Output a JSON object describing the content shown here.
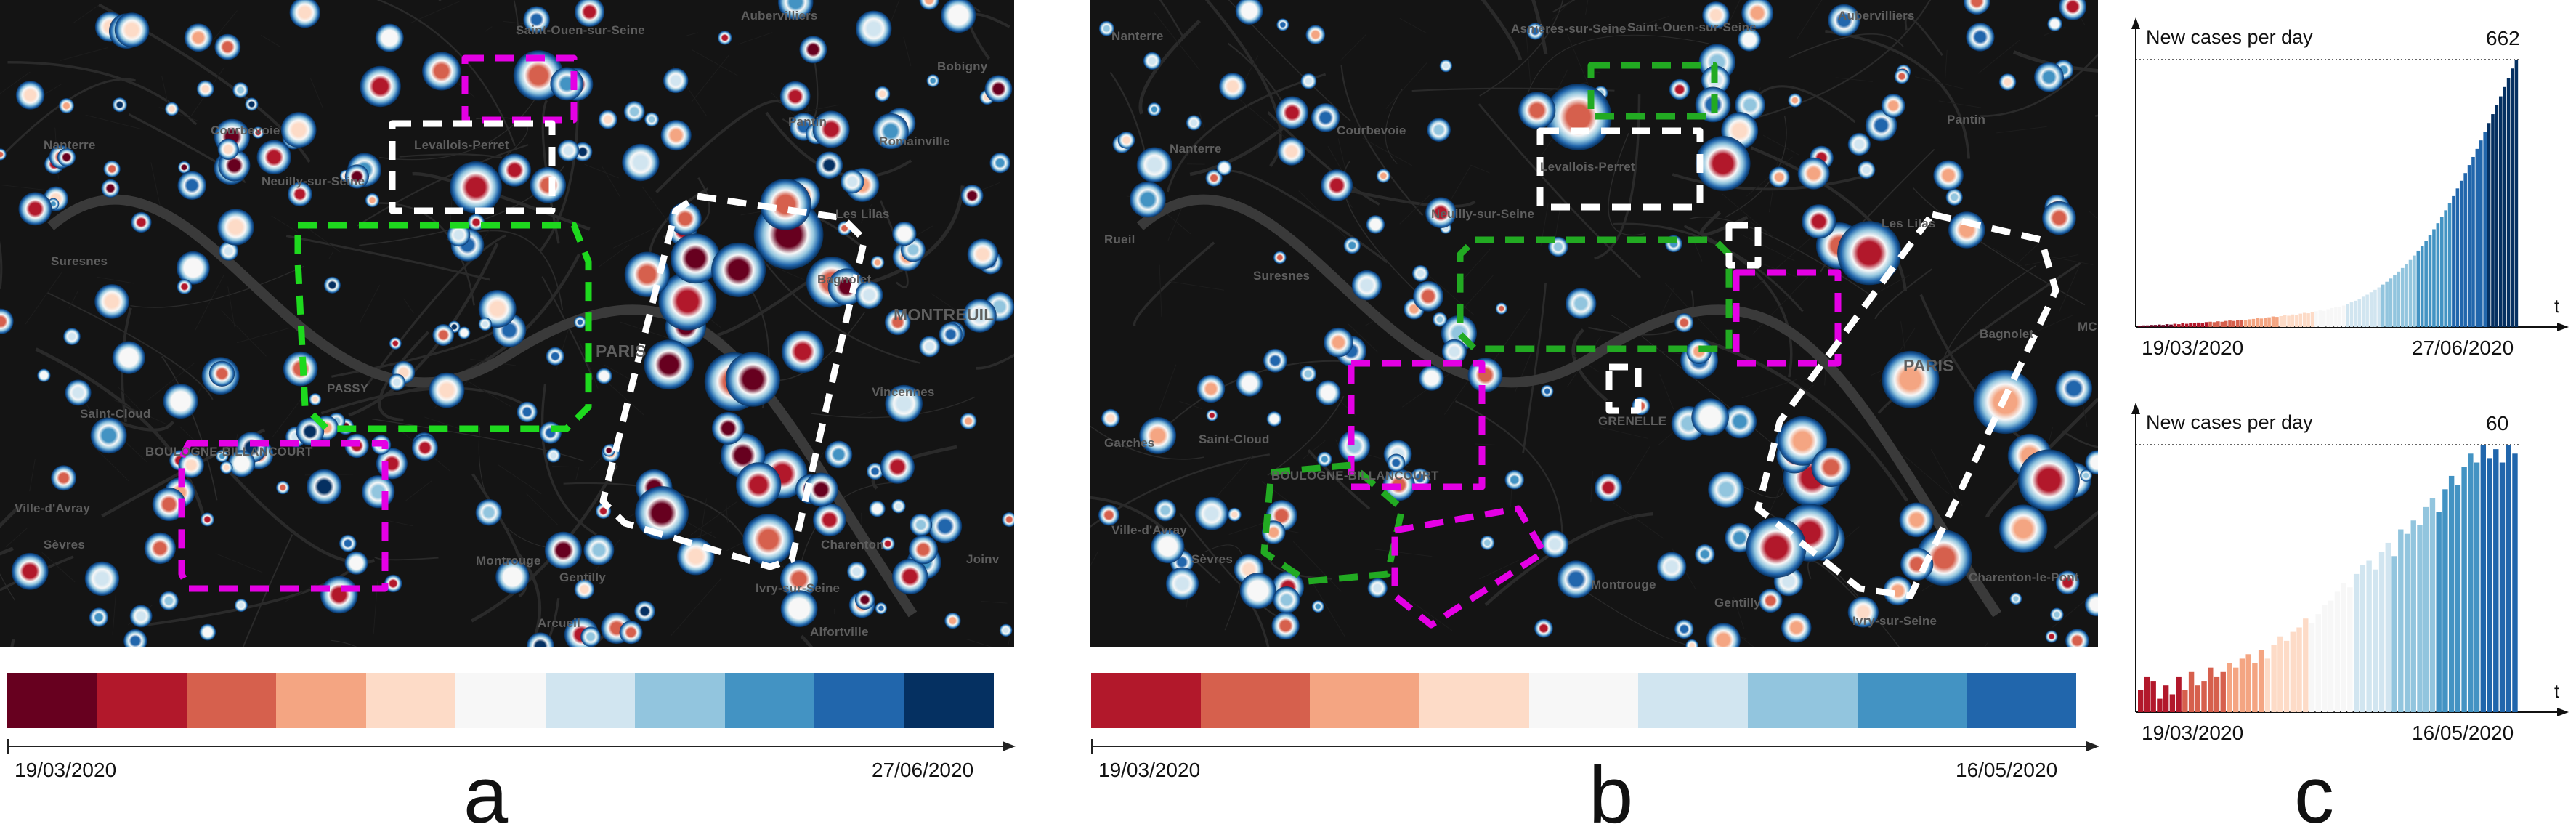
{
  "panels": {
    "a": "a",
    "b": "b",
    "c": "c"
  },
  "map_a": {
    "labels": [
      "Saint-Ouen-sur-Seine",
      "Aubervilliers",
      "Bobigny",
      "Pantin",
      "Nanterre",
      "Courbevoie",
      "Levallois-Perret",
      "Neuilly-sur-Seine",
      "Romainville",
      "Les Lilas",
      "Suresnes",
      "Bagnolet",
      "MONTREUIL",
      "PASSY",
      "PARIS",
      "Vincennes",
      "Saint-Cloud",
      "BOULOGNE-BILLANCOURT",
      "Ville-d'Avray",
      "Sèvres",
      "Montrouge",
      "Gentilly",
      "Charenton",
      "Joinv",
      "Ivry-sur-Seine",
      "Arcueil",
      "Alfortville"
    ]
  },
  "map_b": {
    "labels": [
      "Asnières-sur-Seine",
      "Saint-Ouen-sur-Seine",
      "Aubervilliers",
      "Pantin",
      "Nanterre",
      "Courbevoie",
      "Levallois-Perret",
      "Neuilly-sur-Seine",
      "Suresnes",
      "Les Lilas",
      "Bagnolet",
      "PARIS",
      "GRENELLE",
      "Saint-Cloud",
      "BOULOGNE-BILLANCOURT",
      "Ville-d'Avray",
      "Sèvres",
      "Montrouge",
      "Gentilly",
      "Charenton-le-Pont",
      "Ivry-sur-Seine",
      "Nanterre",
      "Rueil",
      "Garches",
      "MC"
    ]
  },
  "colors": {
    "a": [
      "#67001f",
      "#b2182b",
      "#d6604d",
      "#f4a582",
      "#fddbc7",
      "#f7f7f7",
      "#d1e5f0",
      "#92c5de",
      "#4393c3",
      "#2166ac",
      "#053061"
    ],
    "b": [
      "#b2182b",
      "#d6604d",
      "#f4a582",
      "#fddbc7",
      "#f7f7f7",
      "#d1e5f0",
      "#92c5de",
      "#4393c3",
      "#2166ac"
    ]
  },
  "timeline_a": {
    "start": "19/03/2020",
    "end": "27/06/2020"
  },
  "timeline_b": {
    "start": "19/03/2020",
    "end": "16/05/2020"
  },
  "chart_data": [
    {
      "type": "bar",
      "title": "New cases per day",
      "xlabel": "t",
      "x_start": "19/03/2020",
      "x_end": "27/06/2020",
      "max_label": "662",
      "ylim": [
        0,
        662
      ],
      "values": [
        3,
        4,
        4,
        5,
        5,
        6,
        5,
        7,
        6,
        8,
        7,
        9,
        8,
        10,
        9,
        11,
        10,
        12,
        13,
        12,
        14,
        13,
        15,
        16,
        15,
        17,
        18,
        17,
        19,
        20,
        22,
        21,
        23,
        24,
        26,
        25,
        27,
        29,
        28,
        31,
        30,
        33,
        35,
        34,
        37,
        39,
        41,
        40,
        44,
        47,
        50,
        49,
        53,
        57,
        61,
        65,
        70,
        75,
        80,
        86,
        92,
        98,
        105,
        112,
        120,
        128,
        137,
        146,
        156,
        166,
        177,
        189,
        201,
        214,
        228,
        242,
        257,
        273,
        289,
        306,
        324,
        343,
        362,
        381,
        401,
        421,
        441,
        462,
        483,
        505,
        527,
        549,
        571,
        594,
        617,
        640,
        662
      ]
    },
    {
      "type": "bar",
      "title": "New cases per day",
      "xlabel": "t",
      "x_start": "19/03/2020",
      "x_end": "16/05/2020",
      "max_label": "60",
      "ylim": [
        0,
        60
      ],
      "values": [
        5,
        8,
        7,
        3,
        6,
        4,
        8,
        5,
        9,
        6,
        7,
        10,
        8,
        9,
        11,
        10,
        12,
        13,
        11,
        14,
        12,
        15,
        17,
        16,
        18,
        19,
        21,
        20,
        22,
        24,
        25,
        27,
        29,
        28,
        31,
        33,
        34,
        32,
        36,
        38,
        35,
        41,
        40,
        43,
        42,
        46,
        48,
        45,
        50,
        53,
        51,
        55,
        58,
        56,
        60,
        57,
        59,
        56,
        60,
        58
      ]
    }
  ]
}
